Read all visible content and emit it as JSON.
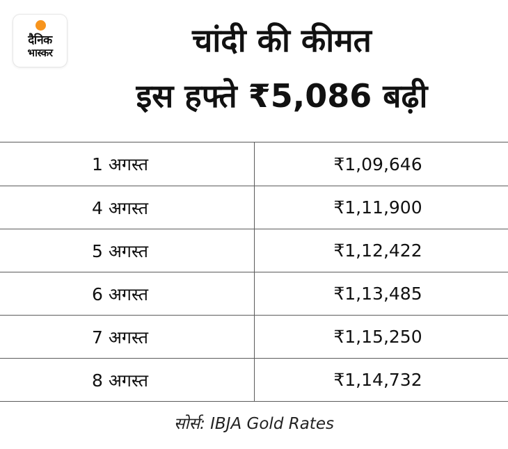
{
  "logo": {
    "line1": "दैनिक",
    "line2": "भास्कर",
    "accent_color": "#f7941d"
  },
  "title": {
    "line1": "चांदी की कीमत",
    "line2": "इस हफ्ते ₹5,086 बढ़ी"
  },
  "table": {
    "rows": [
      {
        "date": "1 अगस्त",
        "price": "₹1,09,646"
      },
      {
        "date": "4 अगस्त",
        "price": "₹1,11,900"
      },
      {
        "date": "5 अगस्त",
        "price": "₹1,12,422"
      },
      {
        "date": "6 अगस्त",
        "price": "₹1,13,485"
      },
      {
        "date": "7 अगस्त",
        "price": "₹1,15,250"
      },
      {
        "date": "8 अगस्त",
        "price": "₹1,14,732"
      }
    ]
  },
  "source": "सोर्स: IBJA Gold Rates"
}
